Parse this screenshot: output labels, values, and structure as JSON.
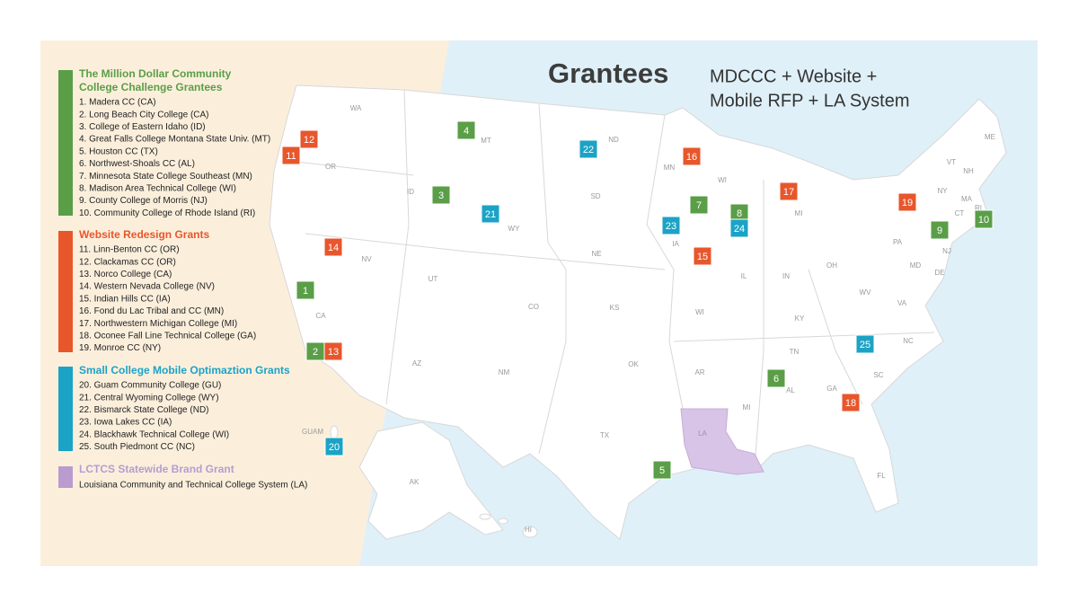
{
  "title": "Grantees",
  "subtitle": [
    "MDCCC + Website +",
    "Mobile RFP + LA System"
  ],
  "groups": [
    {
      "title": [
        "The Million Dollar Community",
        "College Challenge Grantees"
      ],
      "color": "#5a9e47",
      "items": [
        "1.   Madera CC (CA)",
        "2.   Long Beach City College (CA)",
        "3.   College of Eastern Idaho (ID)",
        "4.   Great Falls College Montana State Univ. (MT)",
        "5.   Houston CC (TX)",
        "6.   Northwest-Shoals CC (AL)",
        "7.   Minnesota State College Southeast (MN)",
        "8.   Madison Area Technical College (WI)",
        "9.   County College of Morris (NJ)",
        "10. Community College of Rhode Island (RI)"
      ],
      "markers": [
        "1",
        "2",
        "3",
        "4",
        "5",
        "6",
        "7",
        "8",
        "9",
        "10"
      ]
    },
    {
      "title": [
        "Website Redesign Grants"
      ],
      "color": "#e8562c",
      "items": [
        "11. Linn-Benton CC (OR)",
        "12. Clackamas CC (OR)",
        "13. Norco College (CA)",
        "14. Western Nevada College (NV)",
        "15. Indian Hills CC (IA)",
        "16. Fond du Lac Tribal and CC (MN)",
        "17. Northwestern Michigan College (MI)",
        "18. Oconee Fall Line Technical College (GA)",
        "19. Monroe CC (NY)"
      ],
      "markers": [
        "11",
        "12",
        "13",
        "14",
        "15",
        "16",
        "17",
        "18",
        "19"
      ]
    },
    {
      "title": [
        "Small College Mobile Optimaztion Grants"
      ],
      "color": "#1ba3c6",
      "items": [
        "20. Guam Community College (GU)",
        "21. Central Wyoming College (WY)",
        "22. Bismarck State College (ND)",
        "23. Iowa Lakes CC (IA)",
        "24. Blackhawk Technical College (WI)",
        "25. South Piedmont CC (NC)"
      ],
      "markers": [
        "20",
        "21",
        "22",
        "23",
        "24",
        "25"
      ]
    },
    {
      "title": [
        "LCTCS Statewide Brand Grant"
      ],
      "color": "#b99bd0",
      "items": [
        "Louisiana Community and Technical College System (LA)"
      ]
    }
  ],
  "states": [
    "WA",
    "OR",
    "CA",
    "NV",
    "ID",
    "MT",
    "WY",
    "UT",
    "CO",
    "AZ",
    "NM",
    "ND",
    "SD",
    "NE",
    "KS",
    "OK",
    "TX",
    "MN",
    "IA",
    "WI",
    "AR",
    "LA",
    "WI",
    "IL",
    "MI",
    "IN",
    "OH",
    "KY",
    "TN",
    "MI",
    "AL",
    "GA",
    "FL",
    "SC",
    "NC",
    "VA",
    "WV",
    "PA",
    "NY",
    "VT",
    "NH",
    "ME",
    "MA",
    "RI",
    "CT",
    "NJ",
    "DE",
    "MD",
    "AK",
    "HI",
    "GUAM"
  ]
}
